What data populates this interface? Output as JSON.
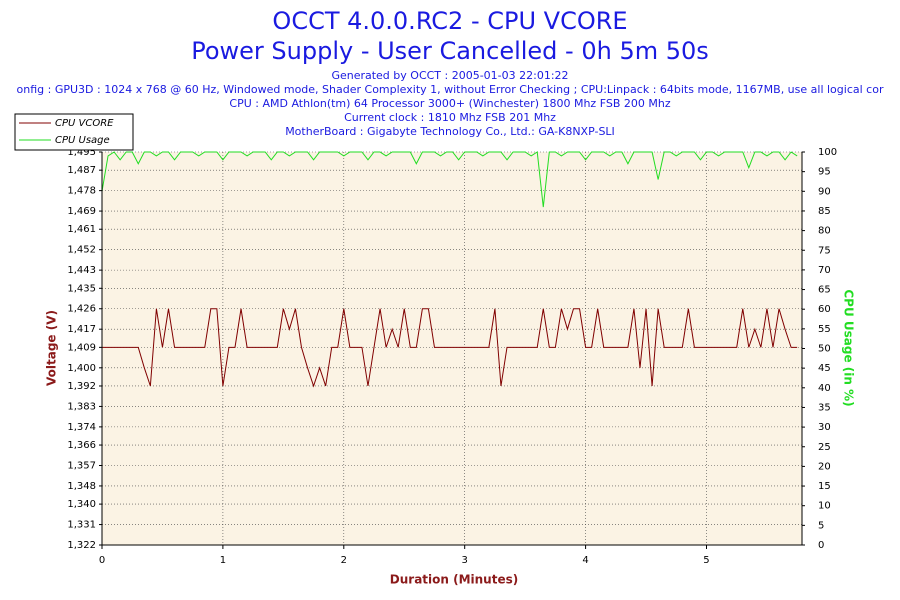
{
  "chart_data": {
    "type": "line",
    "title": "OCCT 4.0.0.RC2 - CPU VCORE",
    "subtitle": "Power Supply - User Cancelled - 0h 5m 50s",
    "info": [
      "Generated by OCCT : 2005-01-03 22:01:22",
      "onfig : GPU3D : 1024 x 768 @ 60 Hz, Windowed mode, Shader Complexity 1, without Error Checking ; CPU:Linpack : 64bits mode, 1167MB, use all logical cor",
      "CPU : AMD Athlon(tm) 64 Processor 3000+ (Winchester) 1800 Mhz FSB 200 Mhz",
      "Current clock : 1810 Mhz FSB 201 Mhz",
      "MotherBoard : Gigabyte Technology Co., Ltd.: GA-K8NXP-SLI"
    ],
    "xlabel": "Duration (Minutes)",
    "ylabel": "Voltage (V)",
    "y2label": "CPU Usage (in %)",
    "xlim": [
      0,
      5.79
    ],
    "xticks": [
      0,
      1,
      2,
      3,
      4,
      5
    ],
    "ylim": [
      1.322,
      1.495
    ],
    "yticks": [
      {
        "value": 1.322,
        "label": "1,322"
      },
      {
        "value": 1.331,
        "label": "1,331"
      },
      {
        "value": 1.34,
        "label": "1,340"
      },
      {
        "value": 1.348,
        "label": "1,348"
      },
      {
        "value": 1.357,
        "label": "1,357"
      },
      {
        "value": 1.366,
        "label": "1,366"
      },
      {
        "value": 1.374,
        "label": "1,374"
      },
      {
        "value": 1.383,
        "label": "1,383"
      },
      {
        "value": 1.392,
        "label": "1,392"
      },
      {
        "value": 1.4,
        "label": "1,400"
      },
      {
        "value": 1.409,
        "label": "1,409"
      },
      {
        "value": 1.417,
        "label": "1,417"
      },
      {
        "value": 1.426,
        "label": "1,426"
      },
      {
        "value": 1.435,
        "label": "1,435"
      },
      {
        "value": 1.443,
        "label": "1,443"
      },
      {
        "value": 1.452,
        "label": "1,452"
      },
      {
        "value": 1.461,
        "label": "1,461"
      },
      {
        "value": 1.469,
        "label": "1,469"
      },
      {
        "value": 1.478,
        "label": "1,478"
      },
      {
        "value": 1.487,
        "label": "1,487"
      },
      {
        "value": 1.495,
        "label": "1,495"
      }
    ],
    "y2lim": [
      0,
      100
    ],
    "y2ticks": [
      0,
      5,
      10,
      15,
      20,
      25,
      30,
      35,
      40,
      45,
      50,
      55,
      60,
      65,
      70,
      75,
      80,
      85,
      90,
      95,
      100
    ],
    "grid": true,
    "legend": "top-left",
    "x": [
      0,
      0.05,
      0.1,
      0.15,
      0.2,
      0.25,
      0.3,
      0.35,
      0.4,
      0.45,
      0.5,
      0.55,
      0.6,
      0.65,
      0.7,
      0.75,
      0.8,
      0.85,
      0.9,
      0.95,
      1,
      1.05,
      1.1,
      1.15,
      1.2,
      1.25,
      1.3,
      1.35,
      1.4,
      1.45,
      1.5,
      1.55,
      1.6,
      1.65,
      1.7,
      1.75,
      1.8,
      1.85,
      1.9,
      1.95,
      2,
      2.05,
      2.1,
      2.15,
      2.2,
      2.25,
      2.3,
      2.35,
      2.4,
      2.45,
      2.5,
      2.55,
      2.6,
      2.65,
      2.7,
      2.75,
      2.8,
      2.85,
      2.9,
      2.95,
      3,
      3.05,
      3.1,
      3.15,
      3.2,
      3.25,
      3.3,
      3.35,
      3.4,
      3.45,
      3.5,
      3.55,
      3.6,
      3.65,
      3.7,
      3.75,
      3.8,
      3.85,
      3.9,
      3.95,
      4,
      4.05,
      4.1,
      4.15,
      4.2,
      4.25,
      4.3,
      4.35,
      4.4,
      4.45,
      4.5,
      4.55,
      4.6,
      4.65,
      4.7,
      4.75,
      4.8,
      4.85,
      4.9,
      4.95,
      5,
      5.05,
      5.1,
      5.15,
      5.2,
      5.25,
      5.3,
      5.35,
      5.4,
      5.45,
      5.5,
      5.55,
      5.6,
      5.65,
      5.7,
      5.75
    ],
    "series": [
      {
        "name": "CPU VCORE",
        "color": "#800000",
        "axis": "y",
        "values": [
          1.409,
          1.409,
          1.409,
          1.409,
          1.409,
          1.409,
          1.409,
          1.4,
          1.392,
          1.426,
          1.409,
          1.426,
          1.409,
          1.409,
          1.409,
          1.409,
          1.409,
          1.409,
          1.426,
          1.426,
          1.392,
          1.409,
          1.409,
          1.426,
          1.409,
          1.409,
          1.409,
          1.409,
          1.409,
          1.409,
          1.426,
          1.417,
          1.426,
          1.409,
          1.4,
          1.392,
          1.4,
          1.392,
          1.409,
          1.409,
          1.426,
          1.409,
          1.409,
          1.409,
          1.392,
          1.409,
          1.426,
          1.409,
          1.417,
          1.409,
          1.426,
          1.409,
          1.409,
          1.426,
          1.426,
          1.409,
          1.409,
          1.409,
          1.409,
          1.409,
          1.409,
          1.409,
          1.409,
          1.409,
          1.409,
          1.426,
          1.392,
          1.409,
          1.409,
          1.409,
          1.409,
          1.409,
          1.409,
          1.426,
          1.409,
          1.409,
          1.426,
          1.417,
          1.426,
          1.426,
          1.409,
          1.409,
          1.426,
          1.409,
          1.409,
          1.409,
          1.409,
          1.409,
          1.426,
          1.4,
          1.426,
          1.392,
          1.426,
          1.409,
          1.409,
          1.409,
          1.409,
          1.426,
          1.409,
          1.409,
          1.409,
          1.409,
          1.409,
          1.409,
          1.409,
          1.409,
          1.426,
          1.409,
          1.417,
          1.409,
          1.426,
          1.409,
          1.426,
          1.417,
          1.409,
          1.409
        ]
      },
      {
        "name": "CPU Usage",
        "color": "#22dd22",
        "axis": "y2",
        "values": [
          90,
          99,
          100,
          98,
          100,
          100,
          97,
          100,
          100,
          99,
          100,
          100,
          98,
          100,
          100,
          100,
          99,
          100,
          100,
          100,
          98,
          100,
          100,
          100,
          99,
          100,
          100,
          100,
          98,
          100,
          100,
          99,
          100,
          100,
          100,
          98,
          100,
          100,
          100,
          100,
          99,
          100,
          100,
          100,
          98,
          100,
          100,
          99,
          100,
          100,
          100,
          100,
          97,
          100,
          100,
          100,
          99,
          100,
          100,
          98,
          100,
          100,
          100,
          99,
          100,
          100,
          100,
          98,
          100,
          100,
          100,
          99,
          100,
          86,
          100,
          100,
          99,
          100,
          100,
          100,
          98,
          100,
          100,
          100,
          99,
          100,
          100,
          97,
          100,
          100,
          100,
          100,
          93,
          100,
          100,
          99,
          100,
          100,
          100,
          98,
          100,
          100,
          99,
          100,
          100,
          100,
          100,
          96,
          100,
          100,
          99,
          100,
          100,
          98,
          100,
          99
        ]
      }
    ]
  }
}
